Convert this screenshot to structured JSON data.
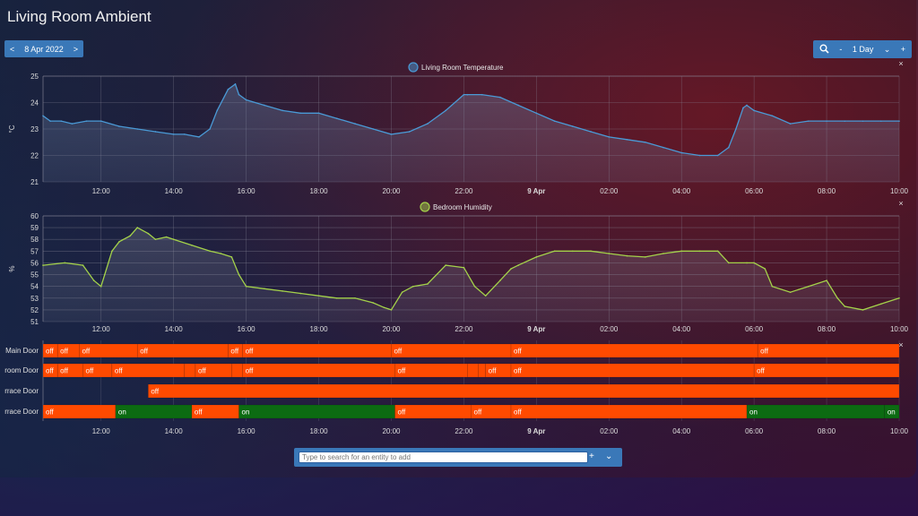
{
  "page": {
    "title": "Living Room Ambient"
  },
  "date_picker": {
    "prev": "<",
    "date": "8 Apr 2022",
    "next": ">"
  },
  "range_picker": {
    "zoom_icon": "zoom-icon",
    "minus": "-",
    "range": "1 Day",
    "chevron": "⌄",
    "plus": "+"
  },
  "search": {
    "placeholder": "Type to search for an entity to add",
    "plus": "+",
    "chevron": "⌄"
  },
  "x_ticks": [
    "12:00",
    "14:00",
    "16:00",
    "18:00",
    "20:00",
    "22:00",
    "9 Apr",
    "02:00",
    "04:00",
    "06:00",
    "08:00",
    "10:00"
  ],
  "colors": {
    "temp": "#4a9ad6",
    "humidity": "#a4d24a",
    "on": "#0c6b12",
    "off": "#ff4a00"
  },
  "chart_data": [
    {
      "type": "area",
      "legend": "Living Room Temperature",
      "ylabel": "°C",
      "ylim": [
        21,
        25
      ],
      "yticks": [
        "25",
        "24",
        "23",
        "22",
        "21"
      ],
      "x_hours": [
        10.4,
        10.6,
        10.9,
        11.2,
        11.6,
        12.0,
        12.5,
        13.0,
        13.5,
        14.0,
        14.3,
        14.7,
        15.0,
        15.2,
        15.5,
        15.7,
        15.8,
        16.0,
        16.5,
        17.0,
        17.5,
        18.0,
        18.5,
        19.0,
        19.5,
        20.0,
        20.5,
        21.0,
        21.5,
        22.0,
        22.1,
        22.5,
        23.0,
        23.5,
        24.0,
        24.5,
        25.0,
        25.5,
        26.0,
        26.5,
        27.0,
        27.5,
        28.0,
        28.5,
        29.0,
        29.3,
        29.5,
        29.7,
        29.8,
        30.0,
        30.5,
        31.0,
        31.5,
        32.0,
        32.5,
        33.0,
        33.5,
        34.0
      ],
      "y_values": [
        23.5,
        23.3,
        23.3,
        23.2,
        23.3,
        23.3,
        23.1,
        23.0,
        22.9,
        22.8,
        22.8,
        22.7,
        23.0,
        23.7,
        24.5,
        24.7,
        24.3,
        24.1,
        23.9,
        23.7,
        23.6,
        23.6,
        23.4,
        23.2,
        23.0,
        22.8,
        22.9,
        23.2,
        23.7,
        24.3,
        24.3,
        24.3,
        24.2,
        23.9,
        23.6,
        23.3,
        23.1,
        22.9,
        22.7,
        22.6,
        22.5,
        22.3,
        22.1,
        22.0,
        22.0,
        22.3,
        23.0,
        23.8,
        23.9,
        23.7,
        23.5,
        23.2,
        23.3,
        23.3,
        23.3,
        23.3,
        23.3,
        23.3
      ]
    },
    {
      "type": "area",
      "legend": "Bedroom Humidity",
      "ylabel": "%",
      "ylim": [
        51,
        60
      ],
      "yticks": [
        "60",
        "59",
        "58",
        "57",
        "56",
        "55",
        "54",
        "53",
        "52",
        "51"
      ],
      "x_hours": [
        10.4,
        11.0,
        11.5,
        11.8,
        12.0,
        12.1,
        12.3,
        12.5,
        12.8,
        13.0,
        13.3,
        13.5,
        13.8,
        14.0,
        14.5,
        15.0,
        15.3,
        15.6,
        15.8,
        16.0,
        16.5,
        17.0,
        17.5,
        18.0,
        18.5,
        19.0,
        19.5,
        19.8,
        20.0,
        20.3,
        20.6,
        21.0,
        21.5,
        22.0,
        22.3,
        22.6,
        23.0,
        23.3,
        23.5,
        24.0,
        24.5,
        25.0,
        25.5,
        26.0,
        26.5,
        27.0,
        27.5,
        28.0,
        28.5,
        29.0,
        29.3,
        29.8,
        30.0,
        30.3,
        30.5,
        31.0,
        31.5,
        32.0,
        32.3,
        32.5,
        33.0,
        33.5,
        34.0
      ],
      "y_values": [
        55.8,
        56.0,
        55.8,
        54.5,
        54.0,
        55.0,
        57.0,
        57.8,
        58.3,
        59.0,
        58.5,
        58.0,
        58.2,
        58.0,
        57.5,
        57.0,
        56.8,
        56.5,
        55.0,
        54.0,
        53.8,
        53.6,
        53.4,
        53.2,
        53.0,
        53.0,
        52.6,
        52.2,
        52.0,
        53.5,
        54.0,
        54.2,
        55.8,
        55.6,
        54.0,
        53.2,
        54.5,
        55.5,
        55.8,
        56.5,
        57.0,
        57.0,
        57.0,
        56.8,
        56.6,
        56.5,
        56.8,
        57.0,
        57.0,
        57.0,
        56.0,
        56.0,
        56.0,
        55.5,
        54.0,
        53.5,
        54.0,
        54.5,
        53.0,
        52.3,
        52.0,
        52.5,
        53.0
      ]
    },
    {
      "type": "timeline",
      "rows": [
        {
          "label": "Main Door",
          "segments": [
            {
              "from": 10.4,
              "to": 10.8,
              "state": "off"
            },
            {
              "from": 10.8,
              "to": 11.4,
              "state": "off"
            },
            {
              "from": 11.4,
              "to": 13.0,
              "state": "off"
            },
            {
              "from": 13.0,
              "to": 15.5,
              "state": "off"
            },
            {
              "from": 15.5,
              "to": 15.9,
              "state": "off"
            },
            {
              "from": 15.9,
              "to": 20.0,
              "state": "off"
            },
            {
              "from": 20.0,
              "to": 23.3,
              "state": "off"
            },
            {
              "from": 23.3,
              "to": 30.1,
              "state": "off"
            },
            {
              "from": 30.1,
              "to": 34.0,
              "state": "off"
            }
          ]
        },
        {
          "label": "room Door",
          "segments": [
            {
              "from": 10.4,
              "to": 10.8,
              "state": "off"
            },
            {
              "from": 10.8,
              "to": 11.5,
              "state": "off"
            },
            {
              "from": 11.5,
              "to": 12.3,
              "state": "off"
            },
            {
              "from": 12.3,
              "to": 14.3,
              "state": "off"
            },
            {
              "from": 14.3,
              "to": 14.6,
              "state": "off"
            },
            {
              "from": 14.6,
              "to": 15.6,
              "state": "off"
            },
            {
              "from": 15.6,
              "to": 15.9,
              "state": "off"
            },
            {
              "from": 15.9,
              "to": 20.1,
              "state": "off"
            },
            {
              "from": 20.1,
              "to": 22.1,
              "state": "off"
            },
            {
              "from": 22.1,
              "to": 22.4,
              "state": "off"
            },
            {
              "from": 22.4,
              "to": 22.6,
              "state": "off"
            },
            {
              "from": 22.6,
              "to": 23.3,
              "state": "off"
            },
            {
              "from": 23.3,
              "to": 30.0,
              "state": "off"
            },
            {
              "from": 30.0,
              "to": 34.0,
              "state": "off"
            }
          ]
        },
        {
          "label": "rrace Door",
          "segments": [
            {
              "from": 13.3,
              "to": 34.0,
              "state": "off"
            }
          ]
        },
        {
          "label": "rrace Door",
          "segments": [
            {
              "from": 10.4,
              "to": 12.4,
              "state": "off"
            },
            {
              "from": 12.4,
              "to": 14.5,
              "state": "on"
            },
            {
              "from": 14.5,
              "to": 15.8,
              "state": "off"
            },
            {
              "from": 15.8,
              "to": 20.1,
              "state": "on"
            },
            {
              "from": 20.1,
              "to": 22.2,
              "state": "off"
            },
            {
              "from": 22.2,
              "to": 23.3,
              "state": "off"
            },
            {
              "from": 23.3,
              "to": 29.8,
              "state": "off"
            },
            {
              "from": 29.8,
              "to": 33.6,
              "state": "on"
            },
            {
              "from": 33.6,
              "to": 34.0,
              "state": "on"
            }
          ]
        }
      ]
    }
  ]
}
